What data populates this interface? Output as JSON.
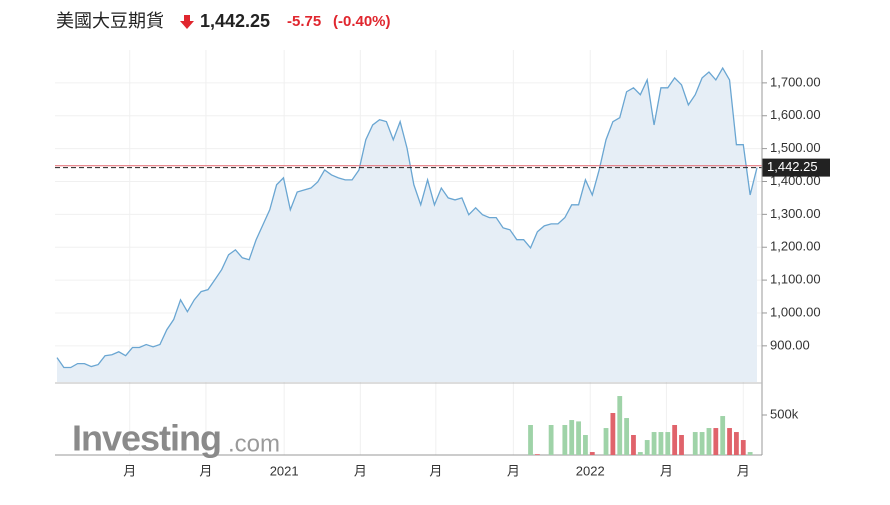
{
  "chart_data": {
    "type": "area",
    "title": "美國大豆期貨",
    "last": {
      "value": 1442.25,
      "label": "1,442.25"
    },
    "change": "-5.75",
    "change_percent": "(-0.40%)",
    "prev_close": 1448,
    "color": "#6aa6d2",
    "fill": "#e6eef6",
    "xlim": [
      0,
      102
    ],
    "xticks": [
      {
        "value": 10.6,
        "label": "月"
      },
      {
        "value": 21.7,
        "label": "月"
      },
      {
        "value": 33.1,
        "label": "2021"
      },
      {
        "value": 44.2,
        "label": "月"
      },
      {
        "value": 55.2,
        "label": "月"
      },
      {
        "value": 66.5,
        "label": "月"
      },
      {
        "value": 77.7,
        "label": "2022"
      },
      {
        "value": 88.8,
        "label": "月"
      },
      {
        "value": 100,
        "label": "月"
      }
    ],
    "ylim": [
      790,
      1800
    ],
    "yticks": [
      {
        "value": 900,
        "label": "900.00"
      },
      {
        "value": 1000,
        "label": "1,000.00"
      },
      {
        "value": 1100,
        "label": "1,100.00"
      },
      {
        "value": 1200,
        "label": "1,200.00"
      },
      {
        "value": 1300,
        "label": "1,300.00"
      },
      {
        "value": 1400,
        "label": "1,400.00"
      },
      {
        "value": 1500,
        "label": "1,500.00"
      },
      {
        "value": 1600,
        "label": "1,600.00"
      },
      {
        "value": 1700,
        "label": "1,700.00"
      }
    ],
    "values": [
      864,
      834,
      834,
      846,
      846,
      837,
      843,
      870,
      873,
      882,
      870,
      895,
      895,
      904,
      897,
      904,
      949,
      980,
      1040,
      1004,
      1040,
      1065,
      1071,
      1101,
      1132,
      1177,
      1192,
      1168,
      1162,
      1222,
      1268,
      1314,
      1390,
      1411,
      1314,
      1368,
      1374,
      1380,
      1399,
      1435,
      1420,
      1411,
      1405,
      1405,
      1435,
      1527,
      1572,
      1588,
      1582,
      1527,
      1582,
      1502,
      1390,
      1329,
      1405,
      1329,
      1380,
      1350,
      1344,
      1350,
      1299,
      1320,
      1299,
      1290,
      1290,
      1259,
      1253,
      1223,
      1223,
      1198,
      1247,
      1265,
      1271,
      1271,
      1290,
      1329,
      1329,
      1405,
      1359,
      1435,
      1527,
      1582,
      1594,
      1673,
      1685,
      1664,
      1709,
      1572,
      1685,
      1685,
      1715,
      1694,
      1633,
      1664,
      1715,
      1733,
      1709,
      1745,
      1709,
      1512,
      1512,
      1359,
      1442.25
    ],
    "volume": {
      "x": [
        69,
        70,
        72,
        74,
        75,
        76,
        77,
        78,
        80,
        81,
        82,
        83,
        84,
        85,
        86,
        87,
        88,
        89,
        90,
        91,
        93,
        94,
        95,
        96,
        97,
        98,
        99,
        100,
        101
      ],
      "values": [
        375000,
        10000,
        375000,
        375000,
        437000,
        420000,
        250000,
        37000,
        337000,
        525000,
        737000,
        462000,
        250000,
        37000,
        187000,
        287000,
        287000,
        287000,
        375000,
        250000,
        287000,
        287000,
        337000,
        337000,
        487000,
        337000,
        287000,
        187000,
        37000
      ],
      "colors": [
        "#9fd3a8",
        "#e0636b",
        "#9fd3a8",
        "#9fd3a8",
        "#9fd3a8",
        "#9fd3a8",
        "#9fd3a8",
        "#e0636b",
        "#9fd3a8",
        "#e0636b",
        "#9fd3a8",
        "#9fd3a8",
        "#e0636b",
        "#9fd3a8",
        "#9fd3a8",
        "#9fd3a8",
        "#9fd3a8",
        "#9fd3a8",
        "#e0636b",
        "#e0636b",
        "#9fd3a8",
        "#9fd3a8",
        "#9fd3a8",
        "#e0636b",
        "#9fd3a8",
        "#e0636b",
        "#e0636b",
        "#e0636b",
        "#9fd3a8"
      ],
      "ylim": [
        0,
        875000
      ],
      "yticks": [
        {
          "value": 500000,
          "label": "500k"
        }
      ]
    },
    "watermark": "Investing",
    "watermark_suffix": ".com"
  }
}
